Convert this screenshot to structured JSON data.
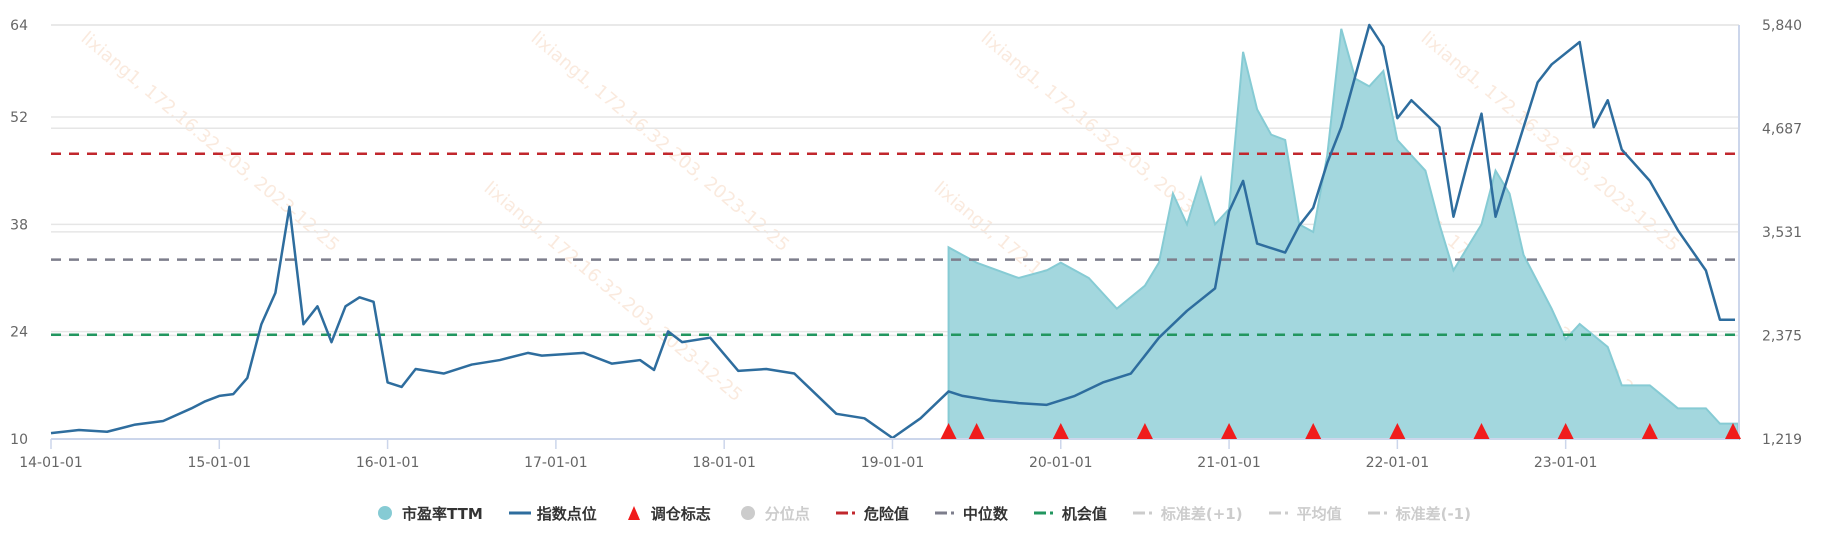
{
  "watermark": "lixiang1, 172.16.32.203, 2023-12-25",
  "colors": {
    "pe_fill": "#a3d7de",
    "pe_stroke": "#86cbd4",
    "index": "#2e6d9e",
    "danger": "#c1272d",
    "median": "#7d7e8c",
    "opportunity": "#22965f",
    "rebalance": "#f01c1c",
    "grid": "#e6e6e6",
    "axis": "#ccd6eb",
    "disabled": "#cccccc"
  },
  "legend": [
    {
      "label": "市盈率TTM",
      "icon": "circle",
      "color": "#86cbd4",
      "active": true
    },
    {
      "label": "指数点位",
      "icon": "line",
      "color": "#2e6d9e",
      "active": true
    },
    {
      "label": "调仓标志",
      "icon": "triangle",
      "color": "#f01c1c",
      "active": true
    },
    {
      "label": "分位点",
      "icon": "circle",
      "color": "#cccccc",
      "active": false
    },
    {
      "label": "危险值",
      "icon": "dashed-line",
      "color": "#c1272d",
      "active": true
    },
    {
      "label": "中位数",
      "icon": "dashed-line",
      "color": "#7d7e8c",
      "active": true
    },
    {
      "label": "机会值",
      "icon": "dashed-line",
      "color": "#22965f",
      "active": true
    },
    {
      "label": "标准差(+1)",
      "icon": "dashed-line",
      "color": "#cccccc",
      "active": false
    },
    {
      "label": "平均值",
      "icon": "dashed-line",
      "color": "#cccccc",
      "active": false
    },
    {
      "label": "标准差(-1)",
      "icon": "dashed-line",
      "color": "#cccccc",
      "active": false
    }
  ],
  "chart_data": {
    "type": "line",
    "grid": true,
    "legend_position": "bottom",
    "x_ticks": [
      "14-01-01",
      "15-01-01",
      "16-01-01",
      "17-01-01",
      "18-01-01",
      "19-01-01",
      "20-01-01",
      "21-01-01",
      "22-01-01",
      "23-01-01"
    ],
    "y_left": {
      "ticks": [
        "10",
        "24",
        "38",
        "52",
        "64"
      ],
      "lim": [
        10,
        64
      ]
    },
    "y_right": {
      "ticks": [
        "1,219",
        "2,375",
        "3,531",
        "4,687",
        "5,840"
      ],
      "lim": [
        1219,
        5840
      ]
    },
    "reference_lines": {
      "danger": 47.2,
      "median": 33.4,
      "opportunity": 23.6
    },
    "series": [
      {
        "name": "市盈率TTM",
        "type": "area",
        "axis": "left",
        "points": [
          [
            "2019-05",
            35
          ],
          [
            "2019-06",
            34
          ],
          [
            "2019-07",
            33
          ],
          [
            "2019-10",
            31
          ],
          [
            "2019-12",
            32
          ],
          [
            "2020-01",
            33
          ],
          [
            "2020-03",
            31
          ],
          [
            "2020-05",
            27
          ],
          [
            "2020-07",
            30
          ],
          [
            "2020-08",
            33
          ],
          [
            "2020-09",
            42
          ],
          [
            "2020-10",
            38
          ],
          [
            "2020-11",
            44
          ],
          [
            "2020-12",
            38
          ],
          [
            "2021-01",
            40
          ],
          [
            "2021-02",
            60.5
          ],
          [
            "2021-03",
            53
          ],
          [
            "2021-04",
            49.7
          ],
          [
            "2021-05",
            49
          ],
          [
            "2021-06",
            38
          ],
          [
            "2021-07",
            37
          ],
          [
            "2021-08",
            47
          ],
          [
            "2021-09",
            63.5
          ],
          [
            "2021-10",
            57
          ],
          [
            "2021-11",
            56
          ],
          [
            "2021-12",
            58
          ],
          [
            "2022-01",
            49
          ],
          [
            "2022-03",
            45
          ],
          [
            "2022-04",
            38
          ],
          [
            "2022-05",
            32
          ],
          [
            "2022-07",
            38
          ],
          [
            "2022-08",
            45
          ],
          [
            "2022-09",
            42
          ],
          [
            "2022-10",
            34
          ],
          [
            "2022-12",
            27
          ],
          [
            "2023-01",
            23
          ],
          [
            "2023-02",
            25
          ],
          [
            "2023-04",
            22
          ],
          [
            "2023-05",
            17
          ],
          [
            "2023-07",
            17
          ],
          [
            "2023-09",
            14
          ],
          [
            "2023-11",
            14
          ],
          [
            "2023-12",
            12
          ]
        ]
      },
      {
        "name": "指数点位",
        "type": "line",
        "axis": "right",
        "points": [
          [
            "2014-01",
            1285
          ],
          [
            "2014-03",
            1320
          ],
          [
            "2014-05",
            1300
          ],
          [
            "2014-07",
            1380
          ],
          [
            "2014-09",
            1420
          ],
          [
            "2014-11",
            1560
          ],
          [
            "2014-12",
            1640
          ],
          [
            "2015-01",
            1700
          ],
          [
            "2015-02",
            1720
          ],
          [
            "2015-03",
            1900
          ],
          [
            "2015-04",
            2500
          ],
          [
            "2015-05",
            2850
          ],
          [
            "2015-06",
            3810
          ],
          [
            "2015-07",
            2500
          ],
          [
            "2015-08",
            2700
          ],
          [
            "2015-09",
            2300
          ],
          [
            "2015-10",
            2700
          ],
          [
            "2015-11",
            2800
          ],
          [
            "2015-12",
            2750
          ],
          [
            "2016-01",
            1850
          ],
          [
            "2016-02",
            1800
          ],
          [
            "2016-03",
            2000
          ],
          [
            "2016-05",
            1950
          ],
          [
            "2016-07",
            2050
          ],
          [
            "2016-09",
            2100
          ],
          [
            "2016-11",
            2180
          ],
          [
            "2016-12",
            2150
          ],
          [
            "2017-03",
            2180
          ],
          [
            "2017-05",
            2060
          ],
          [
            "2017-07",
            2100
          ],
          [
            "2017-08",
            1990
          ],
          [
            "2017-09",
            2420
          ],
          [
            "2017-10",
            2300
          ],
          [
            "2017-12",
            2350
          ],
          [
            "2018-02",
            1980
          ],
          [
            "2018-04",
            2000
          ],
          [
            "2018-06",
            1950
          ],
          [
            "2018-07",
            1800
          ],
          [
            "2018-09",
            1500
          ],
          [
            "2018-11",
            1450
          ],
          [
            "2019-01",
            1230
          ],
          [
            "2019-03",
            1450
          ],
          [
            "2019-05",
            1750
          ],
          [
            "2019-06",
            1700
          ],
          [
            "2019-08",
            1650
          ],
          [
            "2019-10",
            1620
          ],
          [
            "2019-12",
            1600
          ],
          [
            "2020-02",
            1700
          ],
          [
            "2020-04",
            1850
          ],
          [
            "2020-06",
            1950
          ],
          [
            "2020-08",
            2350
          ],
          [
            "2020-10",
            2650
          ],
          [
            "2020-12",
            2900
          ],
          [
            "2021-01",
            3760
          ],
          [
            "2021-02",
            4100
          ],
          [
            "2021-03",
            3400
          ],
          [
            "2021-05",
            3300
          ],
          [
            "2021-06",
            3600
          ],
          [
            "2021-07",
            3800
          ],
          [
            "2021-08",
            4300
          ],
          [
            "2021-09",
            4700
          ],
          [
            "2021-11",
            5840
          ],
          [
            "2021-12",
            5600
          ],
          [
            "2022-01",
            4800
          ],
          [
            "2022-02",
            5000
          ],
          [
            "2022-04",
            4700
          ],
          [
            "2022-05",
            3700
          ],
          [
            "2022-06",
            4300
          ],
          [
            "2022-07",
            4850
          ],
          [
            "2022-08",
            3700
          ],
          [
            "2022-10",
            4700
          ],
          [
            "2022-11",
            5200
          ],
          [
            "2022-12",
            5400
          ],
          [
            "2023-02",
            5650
          ],
          [
            "2023-03",
            4700
          ],
          [
            "2023-04",
            5000
          ],
          [
            "2023-05",
            4450
          ],
          [
            "2023-07",
            4100
          ],
          [
            "2023-09",
            3550
          ],
          [
            "2023-11",
            3100
          ],
          [
            "2023-12",
            2550
          ]
        ]
      },
      {
        "name": "调仓标志",
        "type": "marker",
        "dates": [
          "2019-05",
          "2019-07",
          "2020-01",
          "2020-07",
          "2021-01",
          "2021-07",
          "2022-01",
          "2022-07",
          "2023-01",
          "2023-07",
          "2023-12"
        ]
      }
    ]
  }
}
